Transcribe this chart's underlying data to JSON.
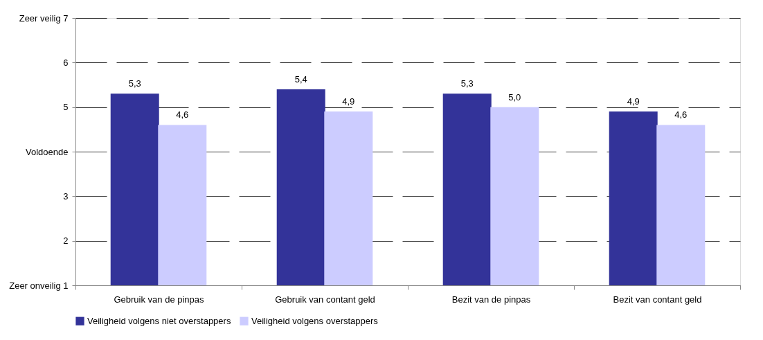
{
  "chart_data": {
    "type": "bar",
    "categories": [
      "Gebruik van de pinpas",
      "Gebruik van contant geld",
      "Bezit van de pinpas",
      "Bezit van contant geld"
    ],
    "series": [
      {
        "name": "Veiligheid volgens niet overstappers",
        "color": "#333399",
        "values": [
          5.3,
          5.4,
          5.3,
          4.9
        ],
        "value_labels": [
          "5,3",
          "5,4",
          "5,3",
          "4,9"
        ]
      },
      {
        "name": "Veiligheid volgens overstappers",
        "color": "#ccccff",
        "values": [
          4.6,
          4.9,
          5.0,
          4.6
        ],
        "value_labels": [
          "4,6",
          "4,9",
          "5,0",
          "4,6"
        ]
      }
    ],
    "ylim": [
      1,
      7
    ],
    "yticks": [
      {
        "value": 1,
        "label": "Zeer onveilig   1"
      },
      2,
      3,
      {
        "value": 4,
        "label": "Voldoende"
      },
      5,
      6,
      {
        "value": 7,
        "label": "Zeer veilig   7"
      }
    ],
    "grid": "y",
    "line_style": "dashed",
    "legend": "bottom"
  }
}
